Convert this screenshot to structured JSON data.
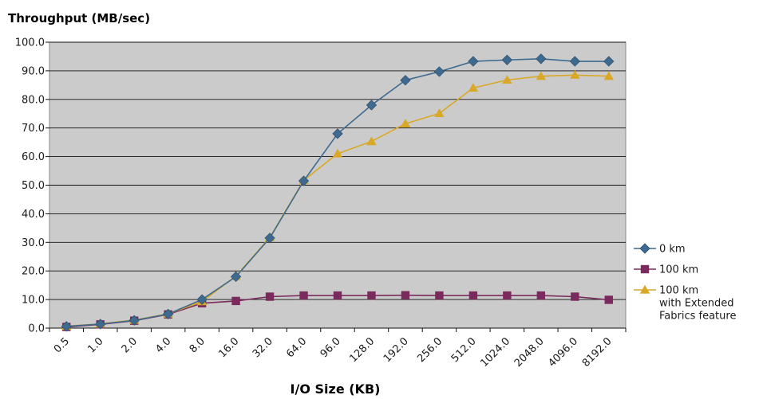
{
  "chart_data": {
    "type": "line",
    "ylabel": "Throughput (MB/sec)",
    "xlabel": "I/O Size (KB)",
    "categories": [
      "0.5",
      "1.0",
      "2.0",
      "4.0",
      "8.0",
      "16.0",
      "32.0",
      "64.0",
      "96.0",
      "128.0",
      "192.0",
      "256.0",
      "512.0",
      "1024.0",
      "2048.0",
      "4096.0",
      "8192.0"
    ],
    "ylim": [
      0,
      100
    ],
    "yticks": [
      "0.0",
      "10.0",
      "20.0",
      "30.0",
      "40.0",
      "50.0",
      "60.0",
      "70.0",
      "80.0",
      "90.0",
      "100.0"
    ],
    "grid": true,
    "legend_position": "right",
    "series": [
      {
        "name": "0 km",
        "marker": "diamond",
        "color": "#3e6a8f",
        "values": [
          0.6,
          1.4,
          2.7,
          4.9,
          10.0,
          18.0,
          31.5,
          51.5,
          68.0,
          78.0,
          86.7,
          89.7,
          93.3,
          93.8,
          94.2,
          93.3,
          93.3
        ]
      },
      {
        "name": "100 km",
        "marker": "square",
        "color": "#7a2a5c",
        "values": [
          0.4,
          1.3,
          2.6,
          4.8,
          8.7,
          9.5,
          11.0,
          11.4,
          11.4,
          11.4,
          11.5,
          11.4,
          11.4,
          11.4,
          11.4,
          11.0,
          9.9
        ]
      },
      {
        "name": "100 km",
        "name_lines": [
          "100 km",
          "with Extended",
          "Fabrics feature"
        ],
        "marker": "triangle",
        "color": "#d9a827",
        "values": [
          0.7,
          1.5,
          2.8,
          5.0,
          9.3,
          18.2,
          31.7,
          51.7,
          61.0,
          65.3,
          71.5,
          75.1,
          84.0,
          86.8,
          88.1,
          88.5,
          88.1
        ]
      }
    ]
  }
}
